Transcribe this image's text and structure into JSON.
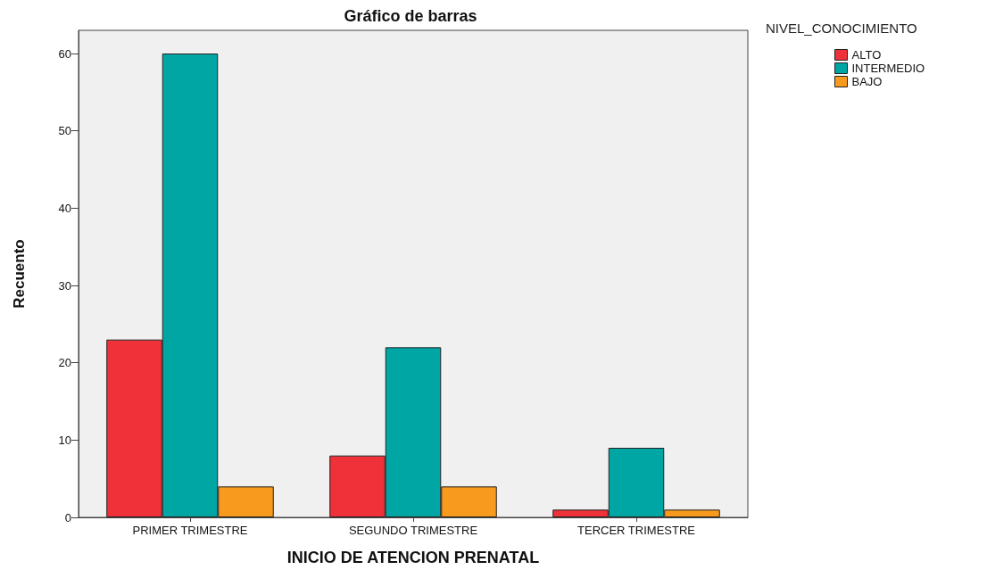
{
  "chart_data": {
    "type": "bar",
    "title": "Gráfico de barras",
    "xlabel": "INICIO DE ATENCION PRENATAL",
    "ylabel": "Recuento",
    "legend_title": "NIVEL_CONOCIMIENTO",
    "categories": [
      "PRIMER TRIMESTRE",
      "SEGUNDO TRIMESTRE",
      "TERCER TRIMESTRE"
    ],
    "series": [
      {
        "name": "ALTO",
        "color": "#ef3139",
        "values": [
          23,
          8,
          1
        ]
      },
      {
        "name": "INTERMEDIO",
        "color": "#00a6a4",
        "values": [
          60,
          22,
          9
        ]
      },
      {
        "name": "BAJO",
        "color": "#f79a1e",
        "values": [
          4,
          4,
          1
        ]
      }
    ],
    "ylim": [
      0,
      63
    ],
    "yticks": [
      0,
      10,
      20,
      30,
      40,
      50,
      60
    ],
    "grid": false,
    "legend": "top right"
  }
}
